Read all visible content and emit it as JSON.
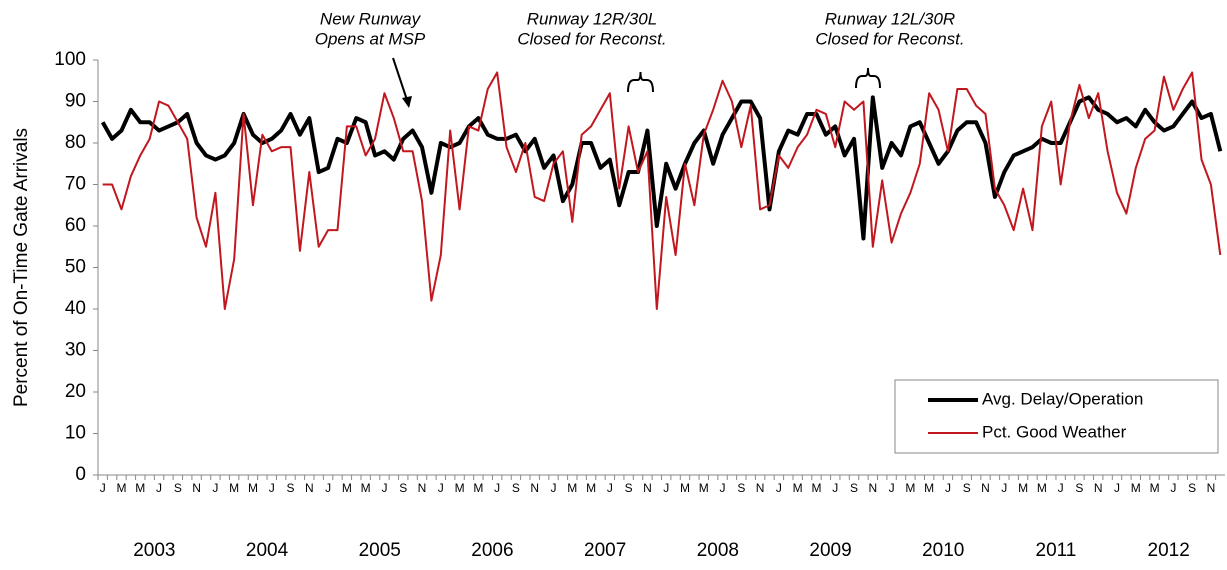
{
  "chart_data": {
    "type": "line",
    "y_label": "Percent of On-Time Gate Arrivals",
    "categories": [
      "J",
      null,
      "M",
      null,
      "M",
      null,
      "J",
      null,
      "S",
      null,
      "N",
      null,
      "J",
      null,
      "M",
      null,
      "M",
      null,
      "J",
      null,
      "S",
      null,
      "N",
      null,
      "J",
      null,
      "M",
      null,
      "M",
      null,
      "J",
      null,
      "S",
      null,
      "N",
      null,
      "J",
      null,
      "M",
      null,
      "M",
      null,
      "J",
      null,
      "S",
      null,
      "N",
      null,
      "J",
      null,
      "M",
      null,
      "M",
      null,
      "J",
      null,
      "S",
      null,
      "N",
      null,
      "J",
      null,
      "M",
      null,
      "M",
      null,
      "J",
      null,
      "S",
      null,
      "N",
      null,
      "J",
      null,
      "M",
      null,
      "M",
      null,
      "J",
      null,
      "S",
      null,
      "N",
      null,
      "J",
      null,
      "M",
      null,
      "M",
      null,
      "J",
      null,
      "S",
      null,
      "N",
      null,
      "J",
      null,
      "M",
      null,
      "M",
      null,
      "J",
      null,
      "S",
      null,
      "N",
      null,
      "J",
      null,
      "M",
      null,
      "M",
      null,
      "J",
      null,
      "S",
      null,
      "N",
      null
    ],
    "year_labels": [
      "2003",
      "2004",
      "2005",
      "2006",
      "2007",
      "2008",
      "2009",
      "2010",
      "2011",
      "2012"
    ],
    "series": [
      {
        "name": "Avg. Delay/Operation",
        "color": "#000000",
        "values": [
          85,
          81,
          83,
          88,
          85,
          85,
          83,
          84,
          85,
          87,
          80,
          77,
          76,
          77,
          80,
          87,
          82,
          80,
          81,
          83,
          87,
          82,
          86,
          73,
          74,
          81,
          80,
          86,
          85,
          77,
          78,
          76,
          81,
          83,
          79,
          68,
          80,
          79,
          80,
          84,
          86,
          82,
          81,
          81,
          82,
          78,
          81,
          74,
          77,
          66,
          70,
          80,
          80,
          74,
          76,
          65,
          73,
          73,
          83,
          60,
          75,
          69,
          75,
          80,
          83,
          75,
          82,
          86,
          90,
          90,
          86,
          64,
          78,
          83,
          82,
          87,
          87,
          82,
          84,
          77,
          81,
          57,
          91,
          74,
          80,
          77,
          84,
          85,
          80,
          75,
          78,
          83,
          85,
          85,
          80,
          67,
          73,
          77,
          78,
          79,
          81,
          80,
          80,
          85,
          90,
          91,
          88,
          87,
          85,
          86,
          84,
          88,
          85,
          83,
          84,
          87,
          90,
          86,
          87,
          78
        ]
      },
      {
        "name": "Pct. Good Weather",
        "color": "#c0181e",
        "values": [
          70,
          70,
          64,
          72,
          77,
          81,
          90,
          89,
          85,
          81,
          62,
          55,
          68,
          40,
          52,
          87,
          65,
          82,
          78,
          79,
          79,
          54,
          73,
          55,
          59,
          59,
          84,
          84,
          77,
          81,
          92,
          86,
          78,
          78,
          66,
          42,
          53,
          83,
          64,
          84,
          83,
          93,
          97,
          79,
          73,
          80,
          67,
          66,
          75,
          78,
          61,
          82,
          84,
          88,
          92,
          69,
          84,
          73,
          78,
          40,
          67,
          53,
          75,
          65,
          82,
          88,
          95,
          90,
          79,
          89,
          64,
          65,
          77,
          74,
          79,
          82,
          88,
          87,
          79,
          90,
          88,
          90,
          55,
          71,
          56,
          63,
          68,
          75,
          92,
          88,
          78,
          93,
          93,
          89,
          87,
          69,
          65,
          59,
          69,
          59,
          84,
          90,
          70,
          85,
          94,
          86,
          92,
          78,
          68,
          63,
          74,
          81,
          83,
          96,
          88,
          93,
          97,
          76,
          70,
          53
        ]
      }
    ],
    "ylim": [
      0,
      100
    ],
    "yticks": [
      0,
      10,
      20,
      30,
      40,
      50,
      60,
      70,
      80,
      90,
      100
    ],
    "grid": false,
    "legend": "bottom-right",
    "annotations": [
      {
        "lines": [
          "New Runway",
          "Opens at MSP"
        ]
      },
      {
        "lines": [
          "Runway 12R/30L",
          "Closed for Reconst."
        ]
      },
      {
        "lines": [
          "Runway 12L/30R",
          "Closed for Reconst."
        ]
      }
    ]
  }
}
